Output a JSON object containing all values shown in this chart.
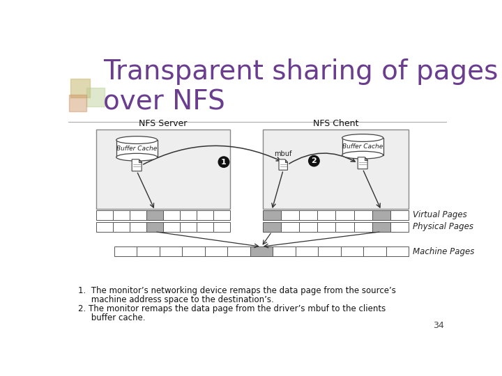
{
  "title_line1": "Transparent sharing of pages",
  "title_line2": "over NFS",
  "title_color": "#6A3D8F",
  "title_fontsize": 28,
  "bg_color": "#ffffff",
  "slide_number": "34",
  "label_nfs_server": "NFS Server",
  "label_nfs_client": "NFS Chent",
  "label_buffer_cache": "Buffer Cache",
  "label_mbuf": "mbuf",
  "label_virtual_pages": "Virtual Pages",
  "label_physical_pages": "Physical Pages",
  "label_machine_pages": "Machine Pages",
  "gray_fill": "#aaaaaa",
  "box_fill": "#eeeeee",
  "white_fill": "#ffffff",
  "edge_color": "#555555",
  "text_color": "#111111",
  "sq1_color": "#c8b870",
  "sq2_color": "#b8cc90",
  "sq3_color": "#cc9060",
  "bullet1a": "1.  The monitor’s networking device remaps the data page from the source’s",
  "bullet1b": "     machine address space to the destination’s.",
  "bullet2a": "2. The monitor remaps the data page from the driver’s mbuf to the clients",
  "bullet2b": "     buffer cache."
}
